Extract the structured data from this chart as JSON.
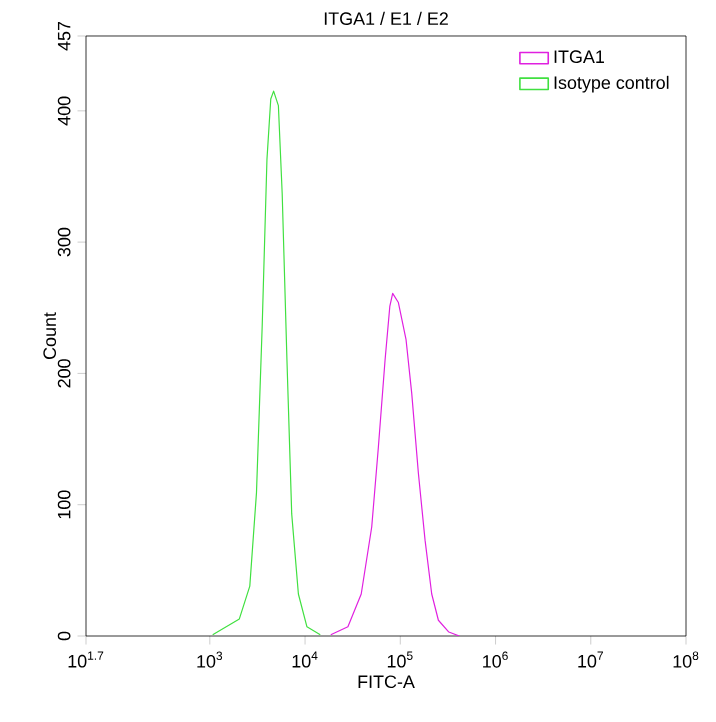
{
  "chart_data": {
    "type": "line",
    "title": "ITGA1 / E1 / E2",
    "xlabel": "FITC-A",
    "ylabel": "Count",
    "log": "x",
    "xlim": [
      50.12,
      100000000
    ],
    "ylim": [
      0,
      457
    ],
    "xticks": [
      {
        "value": 50.12,
        "label": "10$^{1.7}$"
      },
      {
        "value": 1000,
        "label": "10$^{3}$"
      },
      {
        "value": 10000,
        "label": "10$^{4}$"
      },
      {
        "value": 100000,
        "label": "10$^{5}$"
      },
      {
        "value": 1000000,
        "label": "10$^{6}$"
      },
      {
        "value": 10000000,
        "label": "10$^{7}$"
      },
      {
        "value": 100000000,
        "label": "10$^{8}$"
      }
    ],
    "yticks": [
      0,
      100,
      200,
      300,
      400,
      457
    ],
    "grid": false,
    "legend": "top right",
    "marker": "none",
    "line_style": "solid",
    "series": [
      {
        "name": "ITGA1",
        "color": "#e020e0",
        "x": [
          18620,
          28180,
          38900,
          50120,
          58880,
          69180,
          77620,
          83180,
          95500,
          114800,
          131800,
          154900,
          182000,
          213800,
          251200,
          323600,
          416900
        ],
        "values": [
          1,
          7,
          32,
          83,
          144,
          210,
          251,
          261,
          254,
          226,
          185,
          124,
          73,
          32,
          12,
          3,
          0
        ]
      },
      {
        "name": "Isotype control",
        "color": "#40e040",
        "x": [
          1072,
          2042,
          2630,
          3090,
          3548,
          3981,
          4365,
          4677,
          5248,
          5754,
          6457,
          7244,
          8511,
          10470,
          14450
        ],
        "values": [
          1,
          13,
          38,
          109,
          236,
          363,
          409,
          415,
          404,
          337,
          210,
          93,
          32,
          7,
          1
        ]
      }
    ]
  }
}
